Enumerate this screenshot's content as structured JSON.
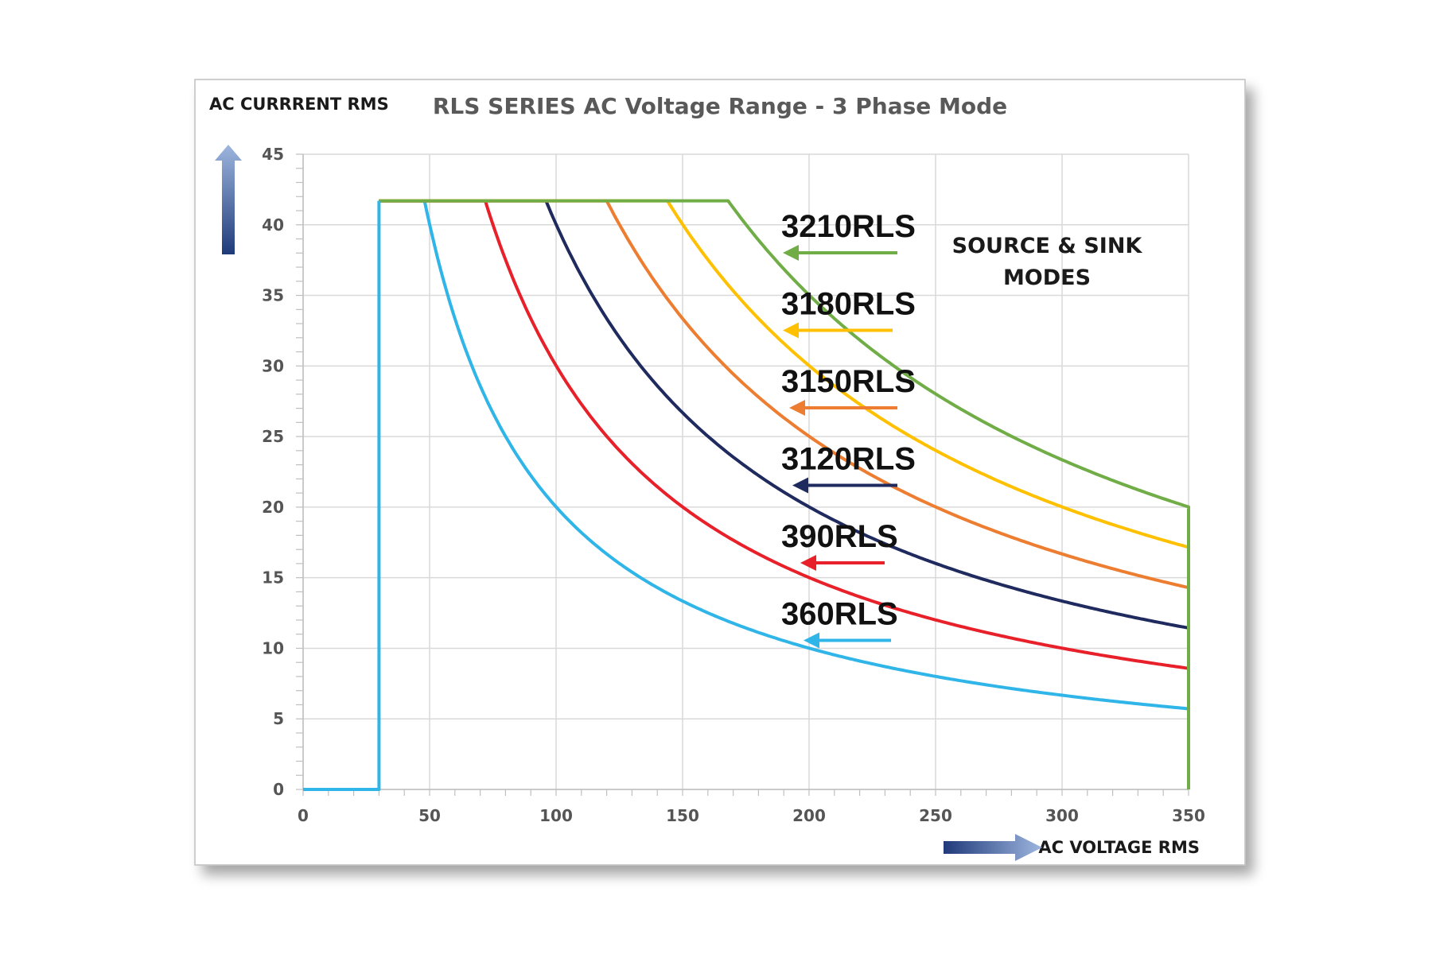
{
  "chart_data": {
    "type": "line",
    "title": "RLS SERIES AC Voltage Range - 3 Phase Mode",
    "ylabel": "AC CURRRENT RMS",
    "xlabel": "AC VOLTAGE RMS",
    "annotation_lines": [
      "SOURCE & SINK",
      "MODES"
    ],
    "xlim": [
      0,
      350
    ],
    "ylim": [
      0,
      45
    ],
    "x_ticks": [
      0,
      50,
      100,
      150,
      200,
      250,
      300,
      350
    ],
    "y_ticks": [
      0,
      5,
      10,
      15,
      20,
      25,
      30,
      35,
      40,
      45
    ],
    "grid": true,
    "colors": {
      "3210RLS": "#70AD47",
      "3180RLS": "#FFC000",
      "3150RLS": "#ED7D31",
      "3120RLS": "#1F2A5E",
      "390RLS": "#E8202A",
      "360RLS": "#2FB5E8"
    },
    "series": [
      {
        "name": "3210RLS",
        "voltage_start": 30,
        "knee_voltage": 168,
        "max_current": 41.7,
        "end_current": 20.0
      },
      {
        "name": "3180RLS",
        "voltage_start": 30,
        "knee_voltage": 144,
        "max_current": 41.7,
        "end_current": 17.1
      },
      {
        "name": "3150RLS",
        "voltage_start": 30,
        "knee_voltage": 120,
        "max_current": 41.7,
        "end_current": 14.3
      },
      {
        "name": "3120RLS",
        "voltage_start": 30,
        "knee_voltage": 96,
        "max_current": 41.7,
        "end_current": 11.4
      },
      {
        "name": "390RLS",
        "voltage_start": 30,
        "knee_voltage": 72,
        "max_current": 41.7,
        "end_current": 8.6
      },
      {
        "name": "360RLS",
        "voltage_start": 30,
        "knee_voltage": 48,
        "max_current": 41.7,
        "end_current": 5.7
      }
    ]
  }
}
